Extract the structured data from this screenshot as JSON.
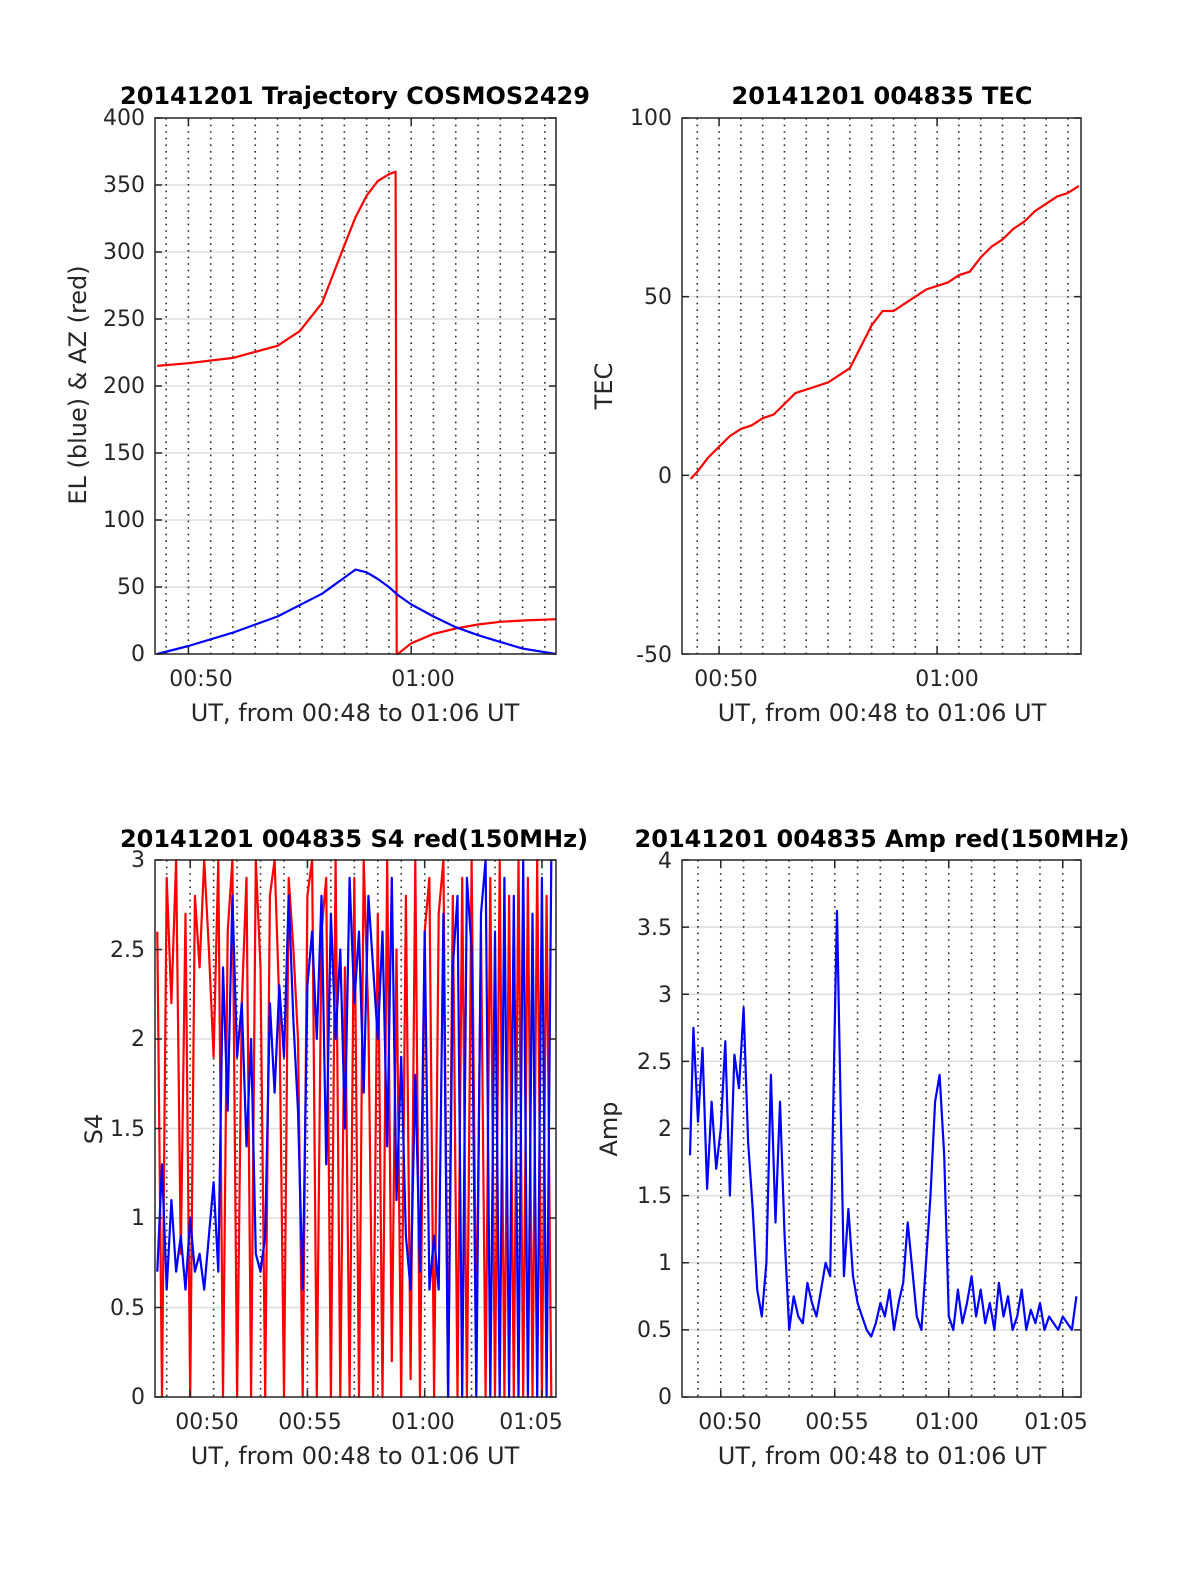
{
  "figure": {
    "panels": [
      {
        "id": "trajectory",
        "title": "20141201 Trajectory COSMOS2429",
        "xlabel": "UT, from 00:48 to 01:06 UT",
        "ylabel": "EL (blue) & AZ (red)",
        "xticklabels": [
          "00:50",
          "01:00"
        ],
        "yticklabels": [
          "0",
          "50",
          "100",
          "150",
          "200",
          "250",
          "300",
          "350",
          "400"
        ]
      },
      {
        "id": "tec",
        "title": "20141201 004835 TEC",
        "xlabel": "UT, from 00:48 to 01:06 UT",
        "ylabel": "TEC",
        "xticklabels": [
          "00:50",
          "01:00"
        ],
        "yticklabels": [
          "-50",
          "0",
          "50",
          "100"
        ]
      },
      {
        "id": "s4",
        "title": "20141201 004835 S4 red(150MHz)",
        "xlabel": "UT, from 00:48 to 01:06 UT",
        "ylabel": "S4",
        "xticklabels": [
          "00:50",
          "00:55",
          "01:00",
          "01:05"
        ],
        "yticklabels": [
          "0",
          "0.5",
          "1",
          "1.5",
          "2",
          "2.5",
          "3"
        ]
      },
      {
        "id": "amp",
        "title": "20141201 004835 Amp red(150MHz)",
        "xlabel": "UT, from 00:48 to 01:06 UT",
        "ylabel": "Amp",
        "xticklabels": [
          "00:50",
          "00:55",
          "01:00",
          "01:05"
        ],
        "yticklabels": [
          "0",
          "0.5",
          "1",
          "1.5",
          "2",
          "2.5",
          "3",
          "3.5",
          "4"
        ]
      }
    ]
  },
  "chart_data": [
    {
      "type": "line",
      "title": "20141201 Trajectory COSMOS2429",
      "xlabel": "UT, from 00:48 to 01:06 UT",
      "ylabel": "EL (blue) & AZ (red)",
      "x_unit": "minutes after 00:00 UT",
      "xlim": [
        48.5,
        66.5
      ],
      "ylim": [
        0,
        400
      ],
      "grid": true,
      "series": [
        {
          "color": "#ff0000",
          "x": [
            48.6,
            50,
            52,
            54,
            55,
            56,
            57,
            57.5,
            58,
            58.5,
            59,
            59.3,
            59.35,
            59.4,
            60,
            61,
            62,
            63,
            64,
            65,
            66.5
          ],
          "y": [
            215,
            217,
            221,
            230,
            241,
            262,
            305,
            326,
            342,
            353,
            358,
            360,
            0,
            0,
            8,
            15,
            19,
            22,
            24,
            25,
            26
          ]
        },
        {
          "color": "#0000ff",
          "x": [
            48.6,
            50,
            52,
            54,
            56,
            57,
            57.5,
            58,
            58.5,
            59,
            59.4,
            60,
            61,
            62,
            63,
            64,
            65,
            66.5
          ],
          "y": [
            0,
            6,
            16,
            28,
            45,
            57,
            63,
            61,
            56,
            50,
            44,
            37,
            28,
            20,
            14,
            9,
            4,
            0
          ]
        }
      ]
    },
    {
      "type": "line",
      "title": "20141201 004835 TEC",
      "xlabel": "UT, from 00:48 to 01:06 UT",
      "ylabel": "TEC",
      "x_unit": "minutes after 00:00 UT",
      "xlim": [
        48.3,
        66.6
      ],
      "ylim": [
        -50,
        100
      ],
      "grid": true,
      "series": [
        {
          "color": "#ff0000",
          "x": [
            48.7,
            49.0,
            49.5,
            50.0,
            50.5,
            51.0,
            51.5,
            52.0,
            52.5,
            53.0,
            53.5,
            54.0,
            54.5,
            55.0,
            55.5,
            56.0,
            56.5,
            57.0,
            57.5,
            58.0,
            58.5,
            59.0,
            59.5,
            60.0,
            60.5,
            61.0,
            61.5,
            62.0,
            62.5,
            63.0,
            63.5,
            64.0,
            64.5,
            65.0,
            65.5,
            66.0,
            66.5
          ],
          "y": [
            -1,
            1,
            5,
            8,
            11,
            13,
            14,
            16,
            17,
            20,
            23,
            24,
            25,
            26,
            28,
            30,
            36,
            42,
            46,
            46,
            48,
            50,
            52,
            53,
            54,
            56,
            57,
            61,
            64,
            66,
            69,
            71,
            74,
            76,
            78,
            79,
            81
          ]
        }
      ]
    },
    {
      "type": "line",
      "title": "20141201 004835 S4 red(150MHz)",
      "xlabel": "UT, from 00:48 to 01:06 UT",
      "ylabel": "S4",
      "x_unit": "minutes after 00:00 UT",
      "xlim": [
        48.5,
        65.6
      ],
      "ylim": [
        0,
        3
      ],
      "grid": true,
      "series": [
        {
          "color": "#ff0000",
          "x": [
            48.6,
            48.8,
            49.0,
            49.2,
            49.4,
            49.6,
            49.8,
            50.0,
            50.2,
            50.4,
            50.6,
            50.8,
            51.0,
            51.2,
            51.4,
            51.6,
            51.8,
            52.0,
            52.2,
            52.4,
            52.6,
            52.8,
            53.0,
            53.2,
            53.4,
            53.6,
            53.8,
            54.0,
            54.2,
            54.4,
            54.6,
            54.8,
            55.0,
            55.2,
            55.4,
            55.6,
            55.8,
            56.0,
            56.2,
            56.4,
            56.6,
            56.8,
            57.0,
            57.2,
            57.4,
            57.6,
            57.8,
            58.0,
            58.2,
            58.4,
            58.6,
            58.8,
            59.0,
            59.2,
            59.4,
            59.6,
            59.8,
            60.0,
            60.2,
            60.4,
            60.6,
            60.8,
            61.0,
            61.2,
            61.4,
            61.6,
            61.8,
            62.0,
            62.2,
            62.4,
            62.6,
            62.8,
            63.0,
            63.2,
            63.4,
            63.6,
            63.8,
            64.0,
            64.2,
            64.4,
            64.6,
            64.8,
            65.0,
            65.2,
            65.4
          ],
          "y": [
            2.6,
            0,
            2.9,
            2.2,
            3.0,
            0.8,
            2.7,
            0,
            2.8,
            2.4,
            3.0,
            2.5,
            1.9,
            3.0,
            0,
            2.6,
            3.0,
            0,
            2.2,
            2.9,
            0,
            3.0,
            2.4,
            0,
            2.8,
            3.0,
            2.2,
            0,
            2.9,
            2.5,
            2.0,
            0,
            2.8,
            3.0,
            0,
            2.6,
            2.9,
            0,
            3.0,
            0,
            2.4,
            0,
            2.9,
            0,
            3.0,
            2.1,
            0,
            2.7,
            0,
            3.0,
            0.2,
            2.5,
            0,
            2.8,
            0.1,
            3.0,
            0,
            2.6,
            2.9,
            0,
            2.7,
            3.0,
            0,
            2.8,
            0,
            2.9,
            0,
            3.0,
            0.3,
            2.6,
            0,
            2.9,
            0,
            3.0,
            0,
            2.8,
            0,
            3.0,
            0,
            2.9,
            0,
            3.0,
            0,
            2.8,
            0
          ]
        },
        {
          "color": "#0000ff",
          "x": [
            48.6,
            48.8,
            49.0,
            49.2,
            49.4,
            49.6,
            49.8,
            50.0,
            50.2,
            50.4,
            50.6,
            50.8,
            51.0,
            51.2,
            51.4,
            51.6,
            51.8,
            52.0,
            52.2,
            52.4,
            52.6,
            52.8,
            53.0,
            53.2,
            53.4,
            53.6,
            53.8,
            54.0,
            54.2,
            54.4,
            54.6,
            54.8,
            55.0,
            55.2,
            55.4,
            55.6,
            55.8,
            56.0,
            56.2,
            56.4,
            56.6,
            56.8,
            57.0,
            57.2,
            57.4,
            57.6,
            57.8,
            58.0,
            58.2,
            58.4,
            58.6,
            58.8,
            59.0,
            59.2,
            59.4,
            59.6,
            59.8,
            60.0,
            60.2,
            60.4,
            60.6,
            60.8,
            61.0,
            61.2,
            61.4,
            61.6,
            61.8,
            62.0,
            62.2,
            62.4,
            62.6,
            62.8,
            63.0,
            63.2,
            63.4,
            63.6,
            63.8,
            64.0,
            64.2,
            64.4,
            64.6,
            64.8,
            65.0,
            65.2,
            65.4
          ],
          "y": [
            0.7,
            1.3,
            0.6,
            1.1,
            0.7,
            0.9,
            0.6,
            1.0,
            0.7,
            0.8,
            0.6,
            0.9,
            1.2,
            0.7,
            2.4,
            1.6,
            2.8,
            1.9,
            2.2,
            1.4,
            2.0,
            0.8,
            0.7,
            0.9,
            2.2,
            1.7,
            2.3,
            1.9,
            2.8,
            2.1,
            1.6,
            0.6,
            2.3,
            2.6,
            2.0,
            2.8,
            1.3,
            2.7,
            2.0,
            2.5,
            1.5,
            2.9,
            2.2,
            2.6,
            1.7,
            2.8,
            2.4,
            2.0,
            2.6,
            1.4,
            2.9,
            1.1,
            1.9,
            0.9,
            0.6,
            1.8,
            0.7,
            2.6,
            0.6,
            0.9,
            0.6,
            2.7,
            0,
            2.4,
            2.8,
            0,
            2.9,
            2.5,
            0,
            2.7,
            3.0,
            0,
            2.6,
            0,
            2.9,
            0,
            2.8,
            0,
            3.0,
            0,
            2.7,
            0,
            2.9,
            0,
            3.0
          ]
        }
      ]
    },
    {
      "type": "line",
      "title": "20141201 004835 Amp red(150MHz)",
      "xlabel": "UT, from 00:48 to 01:06 UT",
      "ylabel": "Amp",
      "x_unit": "minutes after 00:00 UT",
      "xlim": [
        48.3,
        65.8
      ],
      "ylim": [
        0,
        4
      ],
      "grid": true,
      "series": [
        {
          "color": "#0000ff",
          "x": [
            48.65,
            48.8,
            49.0,
            49.2,
            49.4,
            49.6,
            49.8,
            50.0,
            50.2,
            50.4,
            50.6,
            50.8,
            51.0,
            51.2,
            51.4,
            51.6,
            51.8,
            52.0,
            52.2,
            52.4,
            52.6,
            52.8,
            53.0,
            53.2,
            53.4,
            53.6,
            53.8,
            54.0,
            54.2,
            54.4,
            54.6,
            54.8,
            55.0,
            55.1,
            55.2,
            55.4,
            55.6,
            55.8,
            56.0,
            56.2,
            56.4,
            56.6,
            56.8,
            57.0,
            57.2,
            57.4,
            57.6,
            57.8,
            58.0,
            58.2,
            58.4,
            58.6,
            58.8,
            59.0,
            59.2,
            59.4,
            59.6,
            59.8,
            60.0,
            60.2,
            60.4,
            60.6,
            60.8,
            61.0,
            61.2,
            61.4,
            61.6,
            61.8,
            62.0,
            62.2,
            62.4,
            62.6,
            62.8,
            63.0,
            63.2,
            63.4,
            63.6,
            63.8,
            64.0,
            64.2,
            64.4,
            64.6,
            64.8,
            65.0,
            65.2,
            65.4,
            65.6
          ],
          "y": [
            1.8,
            2.75,
            2.05,
            2.6,
            1.55,
            2.2,
            1.7,
            2.0,
            2.65,
            1.5,
            2.55,
            2.3,
            2.9,
            1.9,
            1.4,
            0.8,
            0.6,
            1.0,
            2.4,
            1.3,
            2.2,
            1.2,
            0.5,
            0.75,
            0.6,
            0.55,
            0.85,
            0.7,
            0.6,
            0.8,
            1.0,
            0.9,
            2.8,
            3.62,
            2.7,
            0.9,
            1.4,
            0.9,
            0.7,
            0.6,
            0.5,
            0.45,
            0.55,
            0.7,
            0.6,
            0.8,
            0.5,
            0.7,
            0.85,
            1.3,
            0.95,
            0.6,
            0.5,
            1.0,
            1.5,
            2.2,
            2.4,
            1.8,
            0.6,
            0.5,
            0.8,
            0.55,
            0.7,
            0.9,
            0.6,
            0.8,
            0.55,
            0.7,
            0.5,
            0.85,
            0.6,
            0.75,
            0.5,
            0.6,
            0.8,
            0.5,
            0.65,
            0.55,
            0.7,
            0.5,
            0.6,
            0.55,
            0.5,
            0.6,
            0.55,
            0.5,
            0.75
          ]
        }
      ]
    }
  ]
}
